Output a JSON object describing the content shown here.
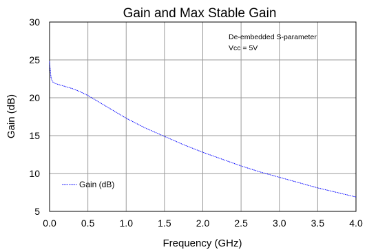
{
  "chart_data": {
    "type": "line",
    "title": "Gain and Max Stable Gain",
    "xlabel": "Frequency (GHz)",
    "ylabel": "Gain (dB)",
    "xlim": [
      0.0,
      4.0
    ],
    "ylim": [
      5,
      30
    ],
    "xticks": [
      "0.0",
      "0.5",
      "1.0",
      "1.5",
      "2.0",
      "2.5",
      "3.0",
      "3.5",
      "4.0"
    ],
    "yticks": [
      "5",
      "10",
      "15",
      "20",
      "25",
      "30"
    ],
    "grid": true,
    "legend_position": "bottom-left",
    "annotations": [
      "De-embedded S-parameter",
      "Vcc = 5V"
    ],
    "series": [
      {
        "name": "Gain (dB)",
        "color": "#0000ff",
        "style": "dotted",
        "x": [
          0.0,
          0.01,
          0.02,
          0.04,
          0.07,
          0.1,
          0.2,
          0.3,
          0.4,
          0.5,
          0.6,
          0.7,
          0.8,
          0.9,
          1.0,
          1.25,
          1.5,
          1.75,
          2.0,
          2.25,
          2.5,
          2.75,
          3.0,
          3.25,
          3.5,
          3.75,
          4.0
        ],
        "y": [
          24.8,
          23.5,
          22.6,
          22.1,
          21.9,
          21.8,
          21.5,
          21.2,
          20.8,
          20.3,
          19.7,
          19.1,
          18.5,
          17.9,
          17.3,
          16.0,
          14.9,
          13.8,
          12.8,
          11.9,
          11.0,
          10.2,
          9.5,
          8.8,
          8.1,
          7.5,
          6.9
        ]
      }
    ]
  }
}
